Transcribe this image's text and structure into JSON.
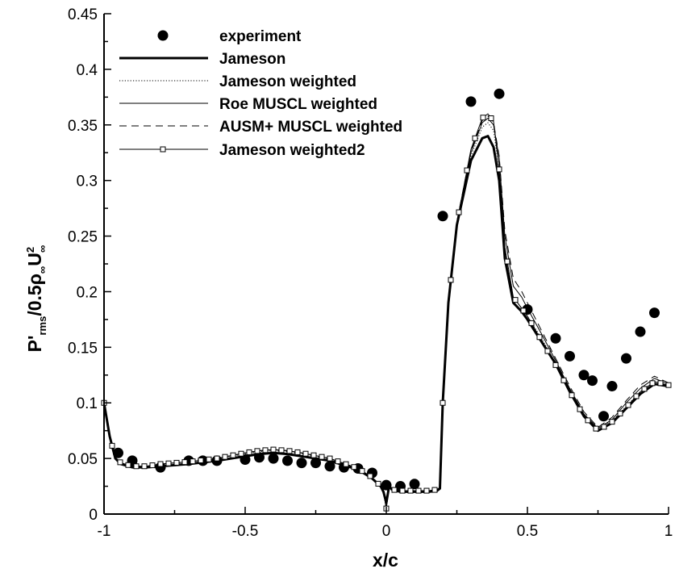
{
  "chart_data": {
    "type": "line",
    "xlabel": "x/c",
    "ylabel": {
      "base": "P'",
      "sub1": "rms",
      "mid": "/0.5ρ",
      "sub2": "∞",
      "u": "U",
      "sup": "2",
      "sub3": "∞"
    },
    "xlim": [
      -1,
      1
    ],
    "ylim": [
      0,
      0.45
    ],
    "xticks": [
      "-1",
      "-0.5",
      "0",
      "0.5",
      "1"
    ],
    "xtick_values": [
      -1,
      -0.5,
      0,
      0.5,
      1
    ],
    "yticks": [
      "0",
      "0.05",
      "0.1",
      "0.15",
      "0.2",
      "0.25",
      "0.3",
      "0.35",
      "0.4",
      "0.45"
    ],
    "ytick_values": [
      0,
      0.05,
      0.1,
      0.15,
      0.2,
      0.25,
      0.3,
      0.35,
      0.4,
      0.45
    ],
    "grid": false,
    "legend_position": "top-left",
    "series": [
      {
        "name": "experiment",
        "style": "markers",
        "x": [
          -0.95,
          -0.9,
          -0.8,
          -0.7,
          -0.65,
          -0.6,
          -0.5,
          -0.45,
          -0.4,
          -0.35,
          -0.3,
          -0.25,
          -0.2,
          -0.15,
          -0.1,
          -0.05,
          0.0,
          0.05,
          0.1,
          0.2,
          0.3,
          0.4,
          0.5,
          0.6,
          0.65,
          0.7,
          0.73,
          0.77,
          0.8,
          0.85,
          0.9,
          0.95
        ],
        "y": [
          0.055,
          0.048,
          0.042,
          0.048,
          0.048,
          0.048,
          0.049,
          0.051,
          0.05,
          0.048,
          0.046,
          0.046,
          0.043,
          0.042,
          0.041,
          0.037,
          0.026,
          0.025,
          0.027,
          0.268,
          0.371,
          0.378,
          0.184,
          0.158,
          0.142,
          0.125,
          0.12,
          0.088,
          0.115,
          0.14,
          0.164,
          0.181
        ]
      },
      {
        "name": "Jameson",
        "style": "thick",
        "x": [
          -1,
          -0.98,
          -0.96,
          -0.94,
          -0.9,
          -0.85,
          -0.8,
          -0.7,
          -0.6,
          -0.5,
          -0.45,
          -0.4,
          -0.35,
          -0.3,
          -0.2,
          -0.1,
          -0.05,
          -0.02,
          -0.01,
          0.0,
          0.01,
          0.02,
          0.05,
          0.1,
          0.15,
          0.18,
          0.19,
          0.2,
          0.22,
          0.25,
          0.3,
          0.34,
          0.36,
          0.38,
          0.4,
          0.42,
          0.45,
          0.48,
          0.5,
          0.55,
          0.6,
          0.65,
          0.7,
          0.75,
          0.8,
          0.85,
          0.9,
          0.95,
          1.0
        ],
        "y": [
          0.1,
          0.07,
          0.05,
          0.045,
          0.042,
          0.042,
          0.043,
          0.045,
          0.048,
          0.052,
          0.054,
          0.055,
          0.054,
          0.052,
          0.048,
          0.04,
          0.032,
          0.025,
          0.02,
          0.01,
          0.025,
          0.022,
          0.02,
          0.02,
          0.02,
          0.021,
          0.023,
          0.1,
          0.19,
          0.26,
          0.318,
          0.338,
          0.34,
          0.33,
          0.3,
          0.23,
          0.19,
          0.182,
          0.175,
          0.155,
          0.135,
          0.11,
          0.088,
          0.075,
          0.082,
          0.095,
          0.108,
          0.117,
          0.115
        ]
      },
      {
        "name": "Jameson weighted",
        "style": "dotted",
        "x": [
          -1,
          -0.98,
          -0.96,
          -0.94,
          -0.9,
          -0.85,
          -0.8,
          -0.7,
          -0.6,
          -0.5,
          -0.45,
          -0.4,
          -0.35,
          -0.3,
          -0.2,
          -0.1,
          -0.05,
          -0.02,
          -0.01,
          0.0,
          0.01,
          0.02,
          0.05,
          0.1,
          0.15,
          0.18,
          0.19,
          0.2,
          0.22,
          0.25,
          0.3,
          0.34,
          0.36,
          0.38,
          0.4,
          0.42,
          0.45,
          0.48,
          0.5,
          0.55,
          0.6,
          0.65,
          0.7,
          0.75,
          0.8,
          0.85,
          0.9,
          0.95,
          1.0
        ],
        "y": [
          0.1,
          0.07,
          0.05,
          0.046,
          0.043,
          0.043,
          0.045,
          0.047,
          0.05,
          0.054,
          0.056,
          0.057,
          0.056,
          0.054,
          0.049,
          0.041,
          0.033,
          0.025,
          0.02,
          0.01,
          0.025,
          0.022,
          0.021,
          0.021,
          0.021,
          0.022,
          0.024,
          0.1,
          0.19,
          0.262,
          0.322,
          0.348,
          0.352,
          0.345,
          0.31,
          0.24,
          0.195,
          0.185,
          0.178,
          0.158,
          0.136,
          0.112,
          0.09,
          0.077,
          0.084,
          0.097,
          0.11,
          0.119,
          0.116
        ]
      },
      {
        "name": "Roe MUSCL weighted",
        "style": "thin",
        "x": [
          -1,
          -0.98,
          -0.96,
          -0.94,
          -0.9,
          -0.85,
          -0.8,
          -0.7,
          -0.6,
          -0.5,
          -0.45,
          -0.4,
          -0.35,
          -0.3,
          -0.2,
          -0.1,
          -0.05,
          -0.02,
          -0.01,
          0.0,
          0.01,
          0.02,
          0.05,
          0.1,
          0.15,
          0.18,
          0.19,
          0.2,
          0.22,
          0.25,
          0.3,
          0.34,
          0.36,
          0.38,
          0.4,
          0.42,
          0.45,
          0.48,
          0.5,
          0.55,
          0.6,
          0.65,
          0.7,
          0.75,
          0.8,
          0.85,
          0.9,
          0.95,
          1.0
        ],
        "y": [
          0.1,
          0.07,
          0.05,
          0.046,
          0.043,
          0.043,
          0.045,
          0.047,
          0.05,
          0.055,
          0.057,
          0.058,
          0.057,
          0.055,
          0.05,
          0.041,
          0.033,
          0.025,
          0.02,
          0.005,
          0.025,
          0.022,
          0.021,
          0.021,
          0.021,
          0.022,
          0.024,
          0.1,
          0.19,
          0.262,
          0.325,
          0.352,
          0.356,
          0.35,
          0.32,
          0.25,
          0.205,
          0.195,
          0.185,
          0.162,
          0.138,
          0.113,
          0.09,
          0.077,
          0.085,
          0.1,
          0.113,
          0.122,
          0.117
        ]
      },
      {
        "name": "AUSM+ MUSCL weighted",
        "style": "dashed",
        "x": [
          -1,
          -0.98,
          -0.96,
          -0.94,
          -0.9,
          -0.85,
          -0.8,
          -0.7,
          -0.6,
          -0.5,
          -0.45,
          -0.4,
          -0.35,
          -0.3,
          -0.2,
          -0.1,
          -0.05,
          -0.02,
          -0.01,
          0.0,
          0.01,
          0.02,
          0.05,
          0.1,
          0.15,
          0.18,
          0.19,
          0.2,
          0.22,
          0.25,
          0.3,
          0.34,
          0.36,
          0.38,
          0.4,
          0.42,
          0.45,
          0.48,
          0.5,
          0.55,
          0.6,
          0.65,
          0.7,
          0.75,
          0.8,
          0.85,
          0.9,
          0.95,
          1.0
        ],
        "y": [
          0.1,
          0.07,
          0.05,
          0.046,
          0.043,
          0.043,
          0.045,
          0.047,
          0.05,
          0.055,
          0.057,
          0.058,
          0.057,
          0.055,
          0.05,
          0.041,
          0.033,
          0.025,
          0.02,
          0.005,
          0.025,
          0.022,
          0.021,
          0.021,
          0.021,
          0.022,
          0.024,
          0.1,
          0.19,
          0.263,
          0.327,
          0.354,
          0.358,
          0.352,
          0.322,
          0.255,
          0.212,
          0.2,
          0.19,
          0.165,
          0.14,
          0.115,
          0.092,
          0.078,
          0.087,
          0.102,
          0.116,
          0.124,
          0.118
        ]
      },
      {
        "name": " Jameson weighted2",
        "style": "square-markers",
        "x": [
          -1,
          -0.98,
          -0.96,
          -0.94,
          -0.9,
          -0.85,
          -0.8,
          -0.7,
          -0.6,
          -0.5,
          -0.45,
          -0.4,
          -0.35,
          -0.3,
          -0.2,
          -0.1,
          -0.05,
          -0.02,
          -0.01,
          0.0,
          0.01,
          0.02,
          0.05,
          0.1,
          0.15,
          0.18,
          0.19,
          0.2,
          0.22,
          0.25,
          0.3,
          0.34,
          0.36,
          0.38,
          0.4,
          0.42,
          0.45,
          0.48,
          0.5,
          0.55,
          0.6,
          0.65,
          0.7,
          0.75,
          0.8,
          0.85,
          0.9,
          0.95,
          1.0
        ],
        "y": [
          0.1,
          0.07,
          0.05,
          0.046,
          0.043,
          0.043,
          0.045,
          0.047,
          0.05,
          0.055,
          0.057,
          0.058,
          0.057,
          0.055,
          0.05,
          0.041,
          0.033,
          0.025,
          0.02,
          0.005,
          0.025,
          0.022,
          0.021,
          0.021,
          0.021,
          0.022,
          0.024,
          0.1,
          0.19,
          0.262,
          0.328,
          0.356,
          0.36,
          0.353,
          0.31,
          0.24,
          0.195,
          0.185,
          0.178,
          0.156,
          0.134,
          0.11,
          0.088,
          0.075,
          0.083,
          0.096,
          0.11,
          0.119,
          0.116
        ]
      }
    ]
  }
}
